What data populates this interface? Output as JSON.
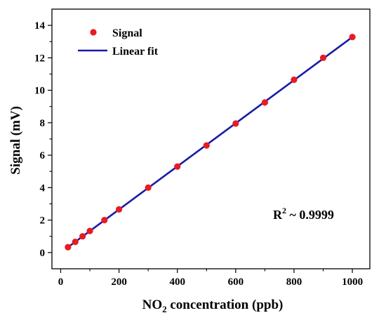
{
  "chart_data": {
    "type": "scatter",
    "xlabel_main": "NO",
    "xlabel_sub": "2",
    "xlabel_rest": " concentration (ppb)",
    "ylabel": "Signal (mV)",
    "xlim": [
      -30,
      1060
    ],
    "ylim": [
      -1,
      15
    ],
    "x_ticks": [
      0,
      200,
      400,
      600,
      800,
      1000
    ],
    "x_minor_ticks": [
      100,
      300,
      500,
      700,
      900
    ],
    "y_ticks": [
      0,
      2,
      4,
      6,
      8,
      10,
      12,
      14
    ],
    "y_minor_ticks": [
      1,
      3,
      5,
      7,
      9,
      11,
      13
    ],
    "grid": false,
    "legend_position": "top-left",
    "series": [
      {
        "name": "Signal",
        "kind": "scatter",
        "color": "#e81b23",
        "x": [
          25,
          50,
          75,
          100,
          150,
          200,
          300,
          400,
          500,
          600,
          700,
          800,
          900,
          1000
        ],
        "y": [
          0.33,
          0.66,
          1.0,
          1.33,
          2.0,
          2.66,
          4.0,
          5.3,
          6.6,
          7.95,
          9.25,
          10.65,
          12.0,
          13.28
        ]
      },
      {
        "name": "Linear fit",
        "kind": "line",
        "color": "#1a1aa8",
        "x": [
          25,
          1000
        ],
        "y": [
          0.33,
          13.28
        ]
      }
    ],
    "annotation": {
      "main": "R",
      "sup": "2",
      "rest": " ~ 0.9999"
    }
  }
}
